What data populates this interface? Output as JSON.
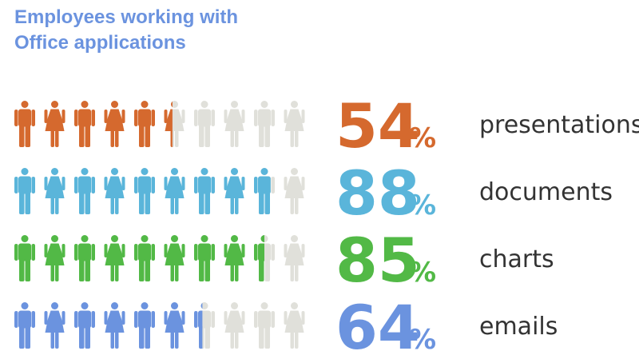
{
  "title": {
    "line1": "Employees working with",
    "line2": "Office applications"
  },
  "chart_data": {
    "type": "pictogram",
    "icons_per_row": 10,
    "icon_pattern": [
      "male-icon",
      "female-icon"
    ],
    "inactive_color": "#e0e0da",
    "percent_sign": "%",
    "series": [
      {
        "value": 54,
        "label": "presentations",
        "display": "54",
        "color": "#d5692e"
      },
      {
        "value": 88,
        "label": "documents",
        "display": "88",
        "color": "#5ab5da"
      },
      {
        "value": 85,
        "label": "charts",
        "display": "85",
        "color": "#52b946"
      },
      {
        "value": 64,
        "label": "emails",
        "display": "64",
        "color": "#6b93df"
      }
    ]
  }
}
